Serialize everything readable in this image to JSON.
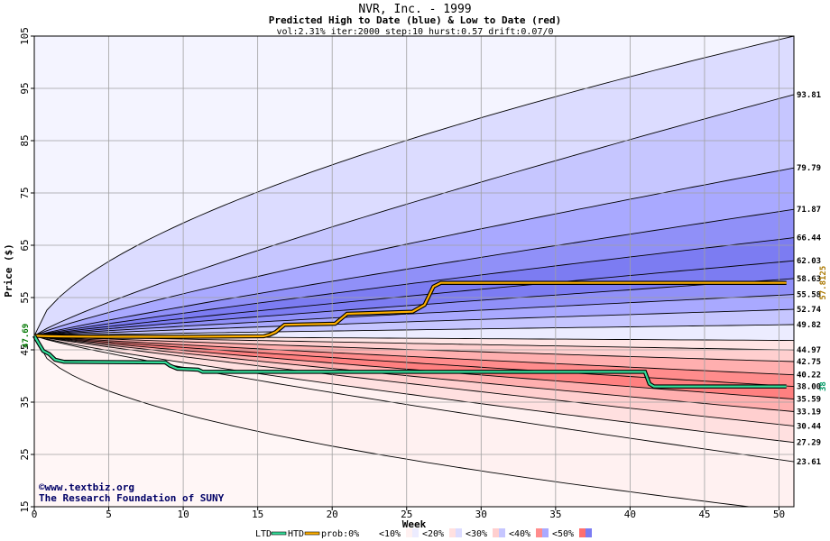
{
  "chart_data": {
    "type": "area",
    "title": "NVR, Inc. - 1999",
    "subtitle": "Predicted High to Date (blue) &  Low to Date (red)",
    "params": "vol:2.31% iter:2000 step:10 hurst:0.57 drift:0.07/0",
    "xlabel": "Week",
    "ylabel": "Price ($)",
    "xlim": [
      0,
      51
    ],
    "ylim": [
      15,
      105
    ],
    "x_ticks": [
      0,
      5,
      10,
      15,
      20,
      25,
      30,
      35,
      40,
      45,
      50
    ],
    "y_ticks": [
      15,
      25,
      35,
      45,
      55,
      65,
      75,
      85,
      95,
      105
    ],
    "grid": true,
    "start_price": 47.69,
    "start_label": "47.69",
    "bands": [
      {
        "end": 105.0,
        "exp": 0.6,
        "label": "",
        "color": "#ececff"
      },
      {
        "end": 93.81,
        "exp": 0.85,
        "label": "93.81",
        "color": "#dcdcff"
      },
      {
        "end": 79.79,
        "exp": 0.85,
        "label": "79.79",
        "color": "#c6c6ff"
      },
      {
        "end": 71.87,
        "exp": 0.9,
        "label": "71.87",
        "color": "#a9a9ff"
      },
      {
        "end": 66.44,
        "exp": 0.9,
        "label": "66.44",
        "color": "#9090f8"
      },
      {
        "end": 62.03,
        "exp": 0.9,
        "label": "62.03",
        "color": "#7c7cf2"
      },
      {
        "end": 58.63,
        "exp": 0.9,
        "label": "58.63",
        "color": "#7c7cf2"
      },
      {
        "end": 55.58,
        "exp": 0.9,
        "label": "55.58",
        "color": "#9090f8"
      },
      {
        "end": 52.74,
        "exp": 0.9,
        "label": "52.74",
        "color": "#a9a9ff"
      },
      {
        "end": 49.82,
        "exp": 0.9,
        "label": "49.82",
        "color": "#c6c6ff"
      },
      {
        "end": 46.8,
        "exp": 0.9,
        "label": "",
        "color": "#ececff"
      },
      {
        "end": 44.97,
        "exp": 0.9,
        "label": "44.97",
        "color": "#ffe4e4"
      },
      {
        "end": 42.75,
        "exp": 0.9,
        "label": "42.75",
        "color": "#ffcfcf"
      },
      {
        "end": 40.22,
        "exp": 0.9,
        "label": "40.22",
        "color": "#ffafaf"
      },
      {
        "end": 38.0,
        "exp": 0.9,
        "label": "38.00",
        "color": "#ff8c8c"
      },
      {
        "end": 35.59,
        "exp": 0.9,
        "label": "35.59",
        "color": "#ff8080"
      },
      {
        "end": 33.19,
        "exp": 0.9,
        "label": "33.19",
        "color": "#ffafaf"
      },
      {
        "end": 30.44,
        "exp": 0.9,
        "label": "30.44",
        "color": "#ffcfcf"
      },
      {
        "end": 27.29,
        "exp": 0.85,
        "label": "27.29",
        "color": "#ffe0e0"
      },
      {
        "end": 23.61,
        "exp": 0.85,
        "label": "23.61",
        "color": "#fff1f1"
      },
      {
        "end": 14.0,
        "exp": 0.5,
        "label": "",
        "color": "#fff1f1"
      }
    ],
    "series": [
      {
        "name": "HTD",
        "color": "#ffb000",
        "points": [
          [
            0,
            47.69
          ],
          [
            1,
            47.6
          ],
          [
            2,
            47.55
          ],
          [
            5,
            47.5
          ],
          [
            10,
            47.5
          ],
          [
            15.4,
            47.6
          ],
          [
            15.8,
            47.9
          ],
          [
            16.2,
            48.4
          ],
          [
            16.8,
            49.8
          ],
          [
            20.2,
            50.0
          ],
          [
            21.0,
            51.9
          ],
          [
            25.4,
            52.3
          ],
          [
            26.2,
            53.6
          ],
          [
            26.8,
            57.1
          ],
          [
            27.3,
            57.8125
          ],
          [
            50.5,
            57.8125
          ]
        ]
      },
      {
        "name": "LTD",
        "color": "#33dd99",
        "points": [
          [
            0,
            47.69
          ],
          [
            0.3,
            46.2
          ],
          [
            0.6,
            44.8
          ],
          [
            1.0,
            44.2
          ],
          [
            1.4,
            43.1
          ],
          [
            2.0,
            42.7
          ],
          [
            8.8,
            42.6
          ],
          [
            9.1,
            42.0
          ],
          [
            9.6,
            41.4
          ],
          [
            11.0,
            41.2
          ],
          [
            11.3,
            40.8
          ],
          [
            41.0,
            40.8
          ],
          [
            41.3,
            38.5
          ],
          [
            41.6,
            38.0
          ],
          [
            50.5,
            38.0
          ]
        ]
      }
    ],
    "end_values": {
      "HTD": "57.8125",
      "LTD": "38"
    },
    "legend": {
      "ltd": "LTD",
      "htd": "HTD",
      "prob_label": "prob:0%",
      "items": [
        {
          "label": "<10%",
          "color": "#fff1f1",
          "color2": "#ececff"
        },
        {
          "label": "<20%",
          "color": "#ffe0e0",
          "color2": "#dcdcff"
        },
        {
          "label": "<30%",
          "color": "#ffcfcf",
          "color2": "#c6c6ff"
        },
        {
          "label": "<40%",
          "color": "#ff8c8c",
          "color2": "#a9a9ff"
        },
        {
          "label": "<50%",
          "color": "#ff6f6f",
          "color2": "#7c7cf2"
        }
      ]
    },
    "credit": [
      "©www.textbiz.org",
      "The Research Foundation of SUNY"
    ]
  }
}
